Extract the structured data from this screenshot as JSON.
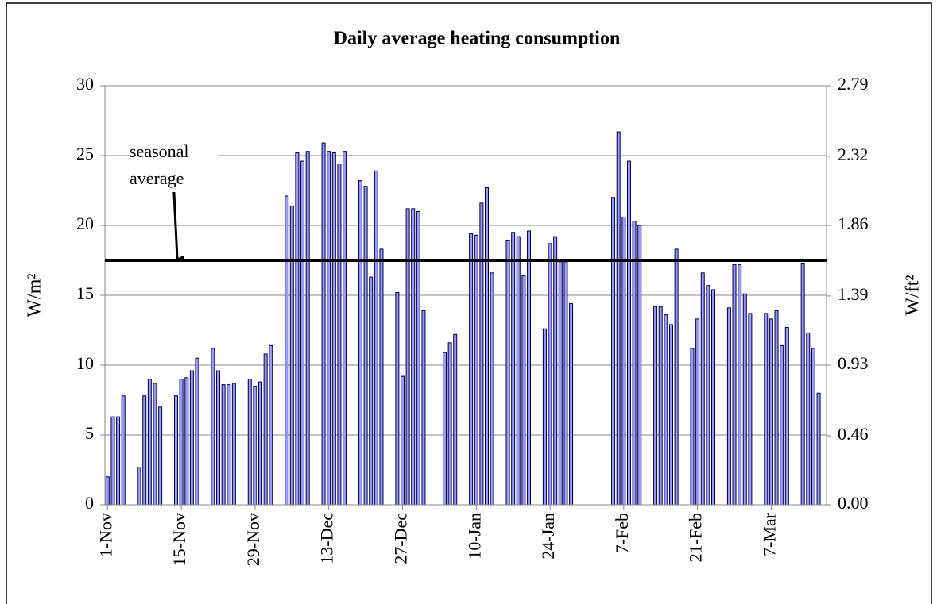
{
  "chart_data": {
    "type": "bar",
    "title": "Daily average heating consumption",
    "ylabel": "W/m²",
    "y2label": "W/ft²",
    "categories": [
      "1-Nov",
      null,
      null,
      null,
      null,
      null,
      null,
      null,
      null,
      null,
      null,
      null,
      null,
      null,
      "15-Nov",
      null,
      null,
      null,
      null,
      null,
      null,
      null,
      null,
      null,
      null,
      null,
      null,
      null,
      "29-Nov",
      null,
      null,
      null,
      null,
      null,
      null,
      null,
      null,
      null,
      null,
      null,
      null,
      null,
      "13-Dec",
      null,
      null,
      null,
      null,
      null,
      null,
      null,
      null,
      null,
      null,
      null,
      null,
      null,
      "27-Dec",
      null,
      null,
      null,
      null,
      null,
      null,
      null,
      null,
      null,
      null,
      null,
      null,
      null,
      "10-Jan",
      null,
      null,
      null,
      null,
      null,
      null,
      null,
      null,
      null,
      null,
      null,
      null,
      null,
      "24-Jan",
      null,
      null,
      null,
      null,
      null,
      null,
      null,
      null,
      null,
      null,
      null,
      null,
      null,
      "7-Feb",
      null,
      null,
      null,
      null,
      null,
      null,
      null,
      null,
      null,
      null,
      null,
      null,
      null,
      "21-Feb",
      null,
      null,
      null,
      null,
      null,
      null,
      null,
      null,
      null,
      null,
      null,
      null,
      null,
      "7-Mar",
      null,
      null,
      null,
      null,
      null,
      null,
      null,
      null,
      null,
      null
    ],
    "series": [
      {
        "color": "#9999ff",
        "values": [
          2,
          6.3,
          6.3,
          7.8,
          null,
          null,
          2.7,
          7.8,
          9.0,
          8.7,
          7.0,
          null,
          null,
          7.8,
          9.0,
          9.1,
          9.6,
          10.5,
          null,
          null,
          11.2,
          9.6,
          8.6,
          8.6,
          8.7,
          null,
          null,
          9.0,
          8.5,
          8.8,
          10.8,
          11.4,
          null,
          null,
          22.1,
          21.4,
          25.2,
          24.6,
          25.3,
          null,
          null,
          25.9,
          25.3,
          25.2,
          24.4,
          25.3,
          null,
          null,
          23.2,
          22.8,
          16.3,
          23.9,
          18.3,
          null,
          null,
          15.2,
          9.2,
          21.2,
          21.2,
          21.0,
          13.9,
          null,
          null,
          null,
          10.9,
          11.6,
          12.2,
          null,
          null,
          19.4,
          19.3,
          21.6,
          22.7,
          16.6,
          null,
          null,
          18.9,
          19.5,
          19.2,
          16.4,
          19.6,
          null,
          null,
          12.6,
          18.7,
          19.2,
          17.4,
          17.4,
          14.4,
          null,
          null,
          null,
          null,
          null,
          null,
          null,
          22.0,
          26.7,
          20.6,
          24.6,
          20.3,
          20.0,
          null,
          null,
          14.2,
          14.2,
          13.6,
          12.9,
          18.3,
          null,
          null,
          11.2,
          13.3,
          16.6,
          15.7,
          15.4,
          null,
          null,
          14.1,
          17.2,
          17.2,
          15.1,
          13.7,
          null,
          null,
          13.7,
          13.3,
          13.9,
          11.4,
          12.7,
          null,
          null,
          17.3,
          12.3,
          11.2,
          8.0,
          null
        ]
      }
    ],
    "ylim": [
      0,
      30
    ],
    "yticks": [
      0,
      5,
      10,
      15,
      20,
      25,
      30
    ],
    "y2lim": [
      0,
      2.79
    ],
    "y2ticks": [
      {
        "value": 0,
        "label": "0.00"
      },
      0.46,
      0.93,
      1.39,
      1.86,
      2.32,
      2.79
    ],
    "grid": true,
    "reference_line": {
      "value": 17.5,
      "label": "seasonal average"
    }
  }
}
